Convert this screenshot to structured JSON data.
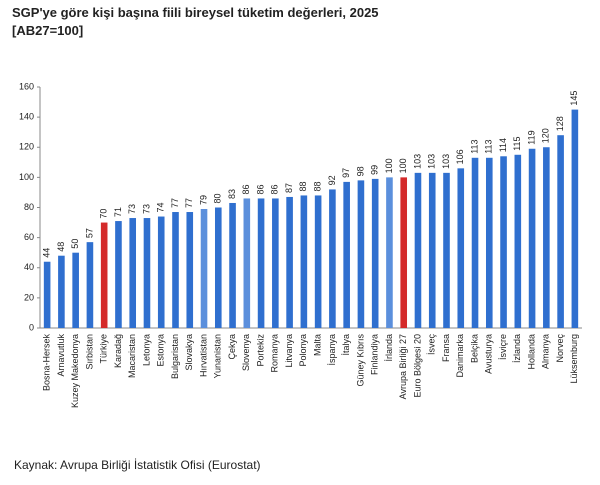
{
  "chart_data": {
    "type": "bar",
    "title": "SGP'ye göre kişi başına fiili bireysel tüketim değerleri, 2025",
    "subtitle": "[AB27=100]",
    "source": "Kaynak: Avrupa Birliği İstatistik Ofisi (Eurostat)",
    "categories": [
      "Bosna-Hersek",
      "Arnavutluk",
      "Kuzey Makedonya",
      "Sırbistan",
      "Türkiye",
      "Karadağ",
      "Macaristan",
      "Letonya",
      "Estonya",
      "Bulgaristan",
      "Slovakya",
      "Hırvatistan",
      "Yunanistan",
      "Çekya",
      "Slovenya",
      "Portekiz",
      "Romanya",
      "Litvanya",
      "Polonya",
      "Malta",
      "İspanya",
      "İtalya",
      "Güney Kıbrıs",
      "Finlandiya",
      "İrlanda",
      "Avrupa Birliği 27",
      "Euro Bölgesi 20",
      "İsveç",
      "Fransa",
      "Danimarka",
      "Belçika",
      "Avusturya",
      "İsviçre",
      "İzlanda",
      "Hollanda",
      "Almanya",
      "Norveç",
      "Lüksemburg"
    ],
    "values": [
      44,
      48,
      50,
      57,
      70,
      71,
      73,
      73,
      74,
      77,
      77,
      79,
      80,
      83,
      86,
      86,
      86,
      87,
      88,
      88,
      92,
      97,
      98,
      99,
      100,
      100,
      103,
      103,
      103,
      106,
      113,
      113,
      114,
      115,
      119,
      120,
      128,
      145
    ],
    "colors": [
      "#2f6fcf",
      "#2f6fcf",
      "#2f6fcf",
      "#2f6fcf",
      "#d42a2a",
      "#2f6fcf",
      "#2f6fcf",
      "#2f6fcf",
      "#2f6fcf",
      "#2f6fcf",
      "#2f6fcf",
      "#5b8fdc",
      "#2f6fcf",
      "#2f6fcf",
      "#5b8fdc",
      "#2f6fcf",
      "#2f6fcf",
      "#2f6fcf",
      "#2f6fcf",
      "#2f6fcf",
      "#2f6fcf",
      "#2f6fcf",
      "#2f6fcf",
      "#2f6fcf",
      "#5b8fdc",
      "#d42a2a",
      "#2f6fcf",
      "#2f6fcf",
      "#2f6fcf",
      "#2f6fcf",
      "#2f6fcf",
      "#2f6fcf",
      "#2f6fcf",
      "#2f6fcf",
      "#2f6fcf",
      "#2f6fcf",
      "#2f6fcf",
      "#2f6fcf"
    ],
    "ylim": [
      0,
      160
    ],
    "yticks": [
      0,
      20,
      40,
      60,
      80,
      100,
      120,
      140,
      160
    ],
    "grid": false
  }
}
